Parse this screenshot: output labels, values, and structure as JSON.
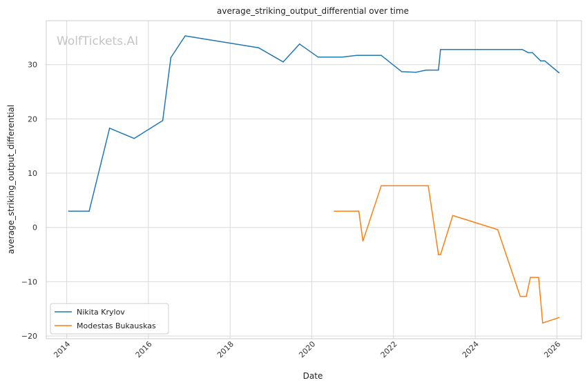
{
  "chart_data": {
    "type": "line",
    "title": "average_striking_output_differential over time",
    "xlabel": "Date",
    "ylabel": "average_striking_output_differential",
    "watermark": "WolfTickets.AI",
    "xlim": [
      2013.5,
      2026.6
    ],
    "ylim": [
      -20.5,
      38.1
    ],
    "x_ticks": [
      2014,
      2016,
      2018,
      2020,
      2022,
      2024,
      2026
    ],
    "y_ticks": [
      -20,
      -10,
      0,
      10,
      20,
      30
    ],
    "x_tick_labels": [
      "2014",
      "2016",
      "2018",
      "2020",
      "2022",
      "2024",
      "2026"
    ],
    "y_tick_labels": [
      "−20",
      "−10",
      "0",
      "10",
      "20",
      "30"
    ],
    "grid": true,
    "legend_position": "lower-left",
    "series": [
      {
        "name": "Nikita Krylov",
        "color": "#1f77b4",
        "points": [
          [
            2014.05,
            3.0
          ],
          [
            2014.55,
            3.0
          ],
          [
            2015.05,
            18.3
          ],
          [
            2015.65,
            16.4
          ],
          [
            2016.35,
            19.7
          ],
          [
            2016.55,
            31.3
          ],
          [
            2016.9,
            35.3
          ],
          [
            2018.7,
            33.1
          ],
          [
            2019.3,
            30.5
          ],
          [
            2019.7,
            33.8
          ],
          [
            2020.15,
            31.4
          ],
          [
            2020.75,
            31.4
          ],
          [
            2021.1,
            31.7
          ],
          [
            2021.7,
            31.7
          ],
          [
            2022.2,
            28.7
          ],
          [
            2022.55,
            28.6
          ],
          [
            2022.8,
            29.0
          ],
          [
            2023.1,
            29.0
          ],
          [
            2023.15,
            32.8
          ],
          [
            2025.15,
            32.8
          ],
          [
            2025.3,
            32.2
          ],
          [
            2025.4,
            32.2
          ],
          [
            2025.6,
            30.7
          ],
          [
            2025.7,
            30.7
          ],
          [
            2026.05,
            28.5
          ]
        ]
      },
      {
        "name": "Modestas Bukauskas",
        "color": "#ff7f0e",
        "points": [
          [
            2020.55,
            3.0
          ],
          [
            2021.15,
            3.0
          ],
          [
            2021.25,
            -2.5
          ],
          [
            2021.7,
            7.7
          ],
          [
            2022.85,
            7.7
          ],
          [
            2023.1,
            -5.0
          ],
          [
            2023.15,
            -5.0
          ],
          [
            2023.45,
            2.2
          ],
          [
            2024.55,
            -0.4
          ],
          [
            2025.1,
            -12.7
          ],
          [
            2025.25,
            -12.7
          ],
          [
            2025.35,
            -9.2
          ],
          [
            2025.55,
            -9.2
          ],
          [
            2025.65,
            -17.6
          ],
          [
            2026.05,
            -16.6
          ]
        ]
      }
    ]
  }
}
